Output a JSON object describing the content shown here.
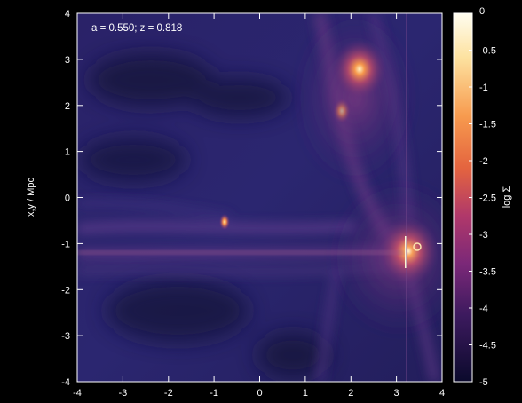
{
  "annotation": "a = 0.550; z = 0.818",
  "ylabel": "x,y / Mpc",
  "colorbar_label": "log Σ",
  "x_ticks": [
    "-4",
    "-3",
    "-2",
    "-1",
    "0",
    "1",
    "2",
    "3",
    "4"
  ],
  "y_ticks": [
    "4",
    "3",
    "2",
    "1",
    "0",
    "-1",
    "-2",
    "-3",
    "-4"
  ],
  "colorbar_ticks": [
    "0",
    "-0.5",
    "-1",
    "-1.5",
    "-2",
    "-2.5",
    "-3",
    "-3.5",
    "-4",
    "-4.5",
    "-5"
  ],
  "colormap": {
    "low": "#0d0a2e",
    "mid": "#7a2a78",
    "high_mid": "#f07a3a",
    "high": "#fffbe8"
  }
}
